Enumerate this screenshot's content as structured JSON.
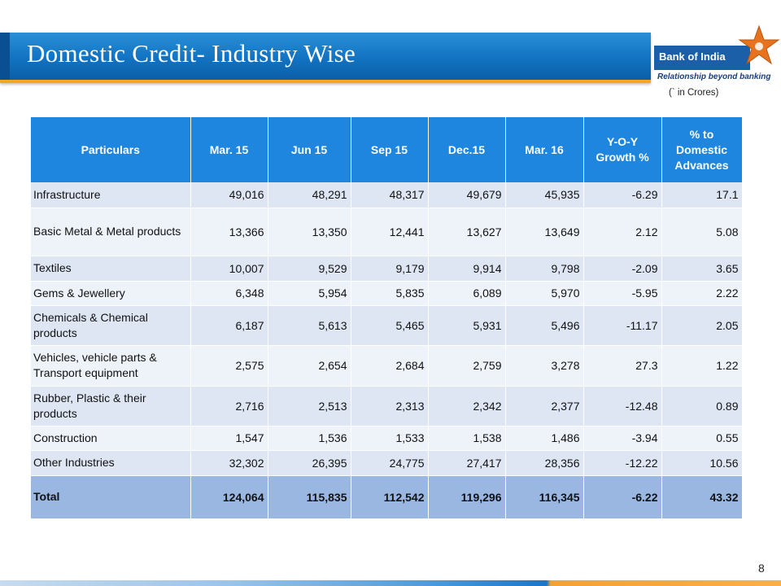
{
  "slide": {
    "title": "Domestic Credit- Industry  Wise",
    "unit_note": "(` in Crores)",
    "page_number": "8"
  },
  "logo": {
    "name": "Bank of India",
    "tagline": "Relationship beyond banking"
  },
  "table": {
    "headers": [
      "Particulars",
      "Mar. 15",
      "Jun 15",
      "Sep 15",
      "Dec.15",
      "Mar. 16",
      "Y-O-Y Growth %",
      "% to Domestic Advances"
    ],
    "rows": [
      [
        "Infrastructure",
        "49,016",
        "48,291",
        "48,317",
        "49,679",
        "45,935",
        "-6.29",
        "17.1"
      ],
      [
        "Basic Metal & Metal products",
        "13,366",
        "13,350",
        "12,441",
        "13,627",
        "13,649",
        "2.12",
        "5.08"
      ],
      [
        "Textiles",
        "10,007",
        "9,529",
        "9,179",
        "9,914",
        "9,798",
        "-2.09",
        "3.65"
      ],
      [
        "Gems & Jewellery",
        "6,348",
        "5,954",
        "5,835",
        "6,089",
        "5,970",
        "-5.95",
        "2.22"
      ],
      [
        "Chemicals & Chemical products",
        "6,187",
        "5,613",
        "5,465",
        "5,931",
        "5,496",
        "-11.17",
        "2.05"
      ],
      [
        "Vehicles, vehicle parts & Transport equipment",
        "2,575",
        "2,654",
        "2,684",
        "2,759",
        "3,278",
        "27.3",
        "1.22"
      ],
      [
        "Rubber, Plastic & their products",
        "2,716",
        "2,513",
        "2,313",
        "2,342",
        "2,377",
        "-12.48",
        "0.89"
      ],
      [
        "Construction",
        "1,547",
        "1,536",
        "1,533",
        "1,538",
        "1,486",
        "-3.94",
        "0.55"
      ],
      [
        "Other  Industries",
        "32,302",
        "26,395",
        "24,775",
        "27,417",
        "28,356",
        "-12.22",
        "10.56"
      ]
    ],
    "total": [
      "Total",
      "124,064",
      "115,835",
      "112,542",
      "119,296",
      "116,345",
      "-6.22",
      "43.32"
    ]
  },
  "colors": {
    "title_bar": "#1273c2",
    "title_underline": "#f6a623",
    "header_bg": "#1f86e0",
    "row_bg_odd": "#dfe6f3",
    "row_bg_even": "#eef2f9",
    "total_bg": "#9ab7e2",
    "logo_star": "#e8731e"
  }
}
